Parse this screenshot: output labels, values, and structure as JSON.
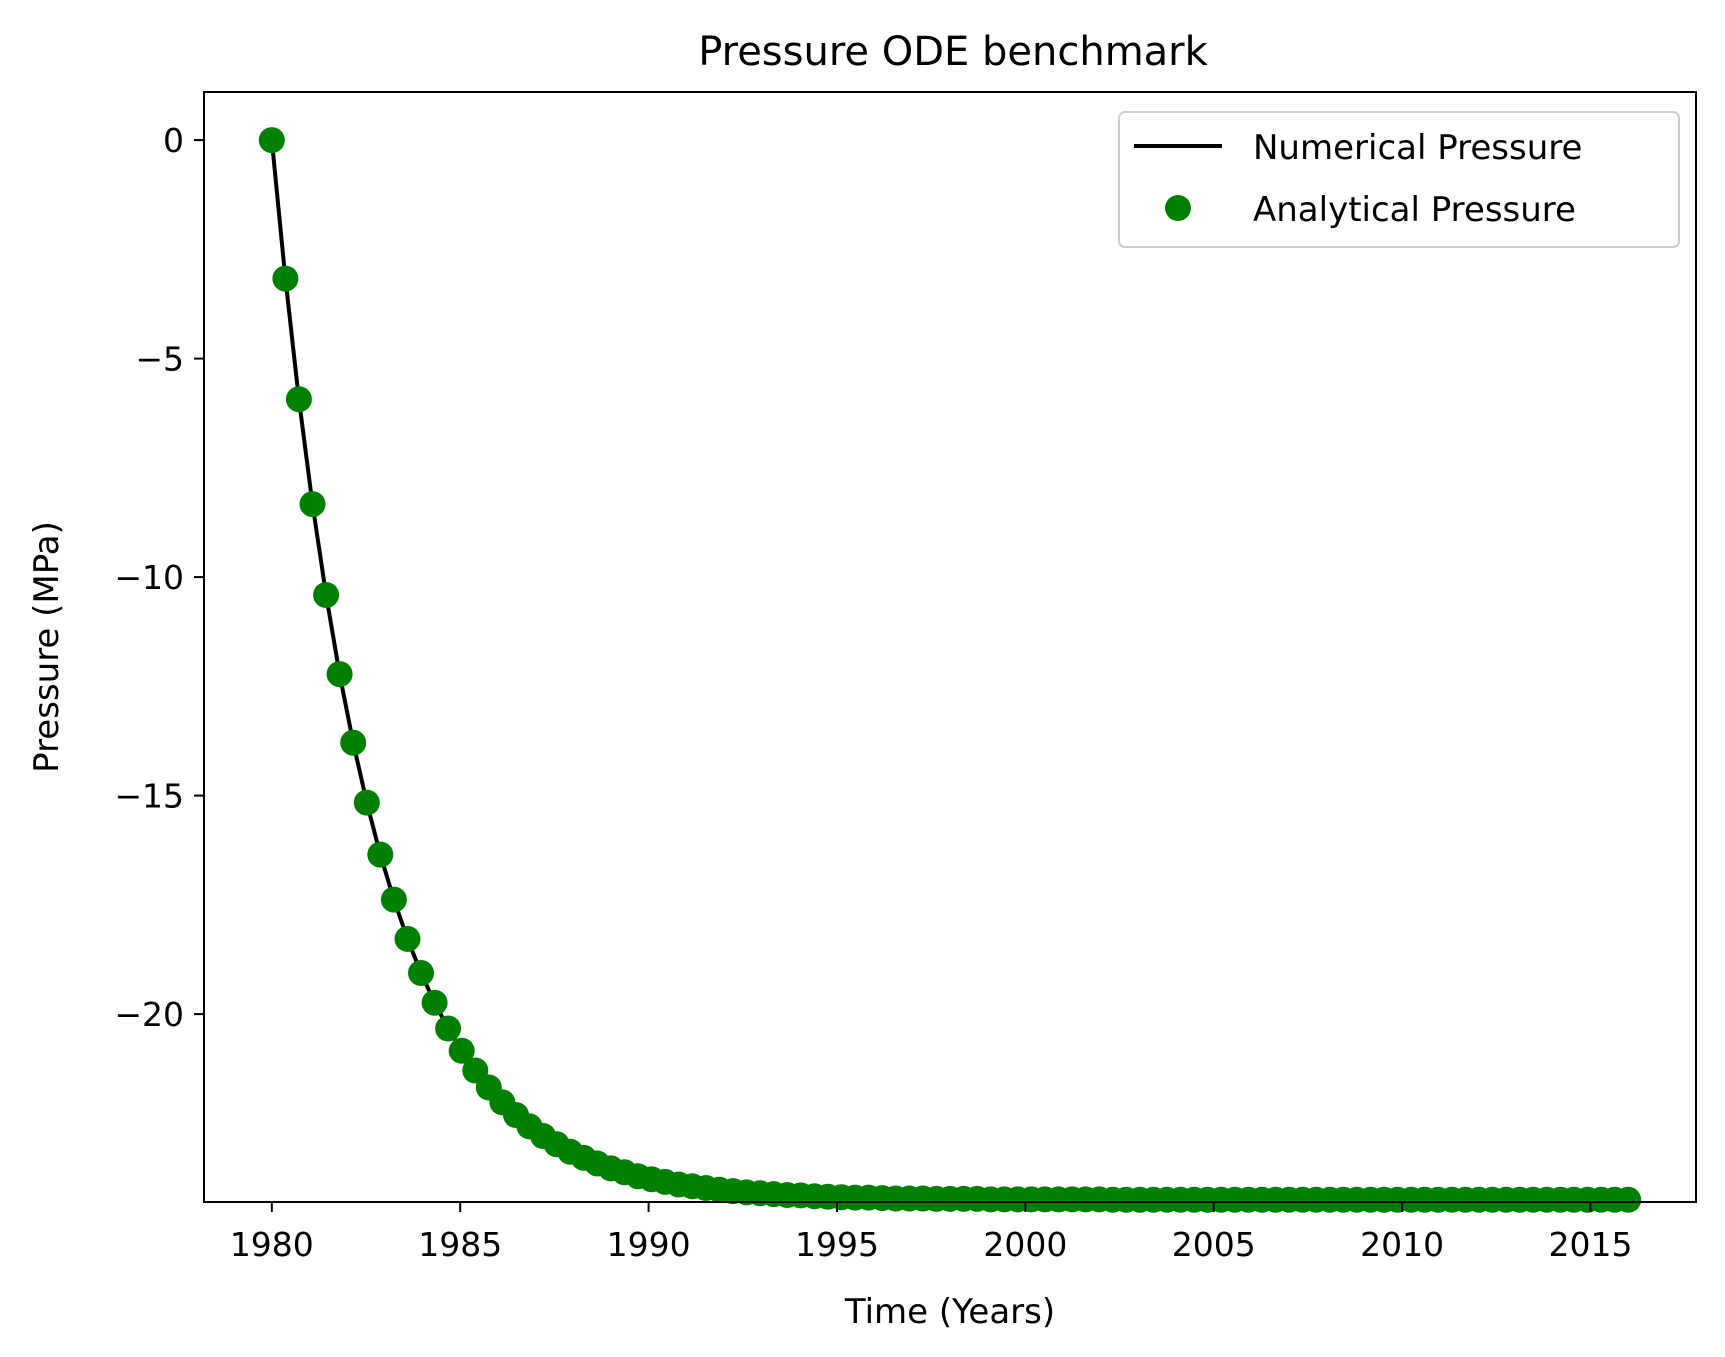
{
  "chart_data": {
    "type": "line",
    "title": "Pressure ODE benchmark",
    "xlabel": "Time (Years)",
    "ylabel": "Pressure (MPa)",
    "xlim": [
      1978.2,
      2017.8
    ],
    "ylim": [
      -24.3,
      1.1
    ],
    "grid": false,
    "legend_position": "top-right",
    "xticks": [
      1980,
      1985,
      1990,
      1995,
      2000,
      2005,
      2010,
      2015
    ],
    "xtick_labels": [
      "1980",
      "1985",
      "1990",
      "1995",
      "2000",
      "2005",
      "2010",
      "2015"
    ],
    "yticks": [
      0,
      -5,
      -10,
      -15,
      -20
    ],
    "ytick_labels": [
      "0",
      "−5",
      "−10",
      "−15",
      "−20"
    ],
    "series": [
      {
        "name": "Numerical Pressure",
        "style": "line",
        "color": "#000000",
        "x": [
          1980.0,
          1980.36,
          1980.72,
          1981.08,
          1981.44,
          1981.8,
          1982.16,
          1982.52,
          1982.88,
          1983.24,
          1983.6,
          1983.96,
          1984.32,
          1984.68,
          1985.04,
          1985.4,
          1985.76,
          1986.12,
          1986.48,
          1986.84,
          1987.2,
          1987.56,
          1987.92,
          1988.28,
          1988.64,
          1989.0,
          1989.36,
          1989.72,
          1990.08,
          1990.44,
          1990.8,
          1991.16,
          1991.52,
          1991.88,
          1992.24,
          1992.6,
          1992.96,
          1993.32,
          1993.68,
          1994.04,
          1994.4,
          1994.76,
          1995.12,
          1995.48,
          1995.84,
          1996.2,
          1996.56,
          1996.92,
          1997.28,
          1997.64,
          1998.0,
          1998.36,
          1998.72,
          1999.08,
          1999.44,
          1999.8,
          2000.16,
          2000.52,
          2000.88,
          2001.24,
          2001.6,
          2001.96,
          2002.32,
          2002.68,
          2003.04,
          2003.4,
          2003.76,
          2004.12,
          2004.48,
          2004.84,
          2005.2,
          2005.56,
          2005.92,
          2006.28,
          2006.64,
          2007.0,
          2007.36,
          2007.72,
          2008.08,
          2008.44,
          2008.8,
          2009.16,
          2009.52,
          2009.88,
          2010.24,
          2010.6,
          2010.96,
          2011.32,
          2011.68,
          2012.04,
          2012.4,
          2012.76,
          2013.12,
          2013.48,
          2013.84,
          2014.2,
          2014.56,
          2014.92,
          2015.28,
          2015.64,
          2016.0
        ],
        "y": [
          0.0,
          -3.17,
          -5.93,
          -8.33,
          -10.41,
          -12.22,
          -13.79,
          -15.16,
          -16.35,
          -17.38,
          -18.28,
          -19.06,
          -19.74,
          -20.33,
          -20.84,
          -21.29,
          -21.68,
          -22.02,
          -22.31,
          -22.57,
          -22.79,
          -22.98,
          -23.15,
          -23.29,
          -23.42,
          -23.53,
          -23.62,
          -23.71,
          -23.78,
          -23.84,
          -23.9,
          -23.94,
          -23.98,
          -24.02,
          -24.05,
          -24.08,
          -24.1,
          -24.12,
          -24.14,
          -24.15,
          -24.17,
          -24.18,
          -24.19,
          -24.2,
          -24.2,
          -24.21,
          -24.22,
          -24.22,
          -24.22,
          -24.23,
          -24.23,
          -24.23,
          -24.23,
          -24.24,
          -24.24,
          -24.24,
          -24.24,
          -24.24,
          -24.24,
          -24.24,
          -24.24,
          -24.24,
          -24.25,
          -24.25,
          -24.25,
          -24.25,
          -24.25,
          -24.25,
          -24.25,
          -24.25,
          -24.25,
          -24.25,
          -24.25,
          -24.25,
          -24.25,
          -24.25,
          -24.25,
          -24.25,
          -24.25,
          -24.25,
          -24.25,
          -24.25,
          -24.25,
          -24.25,
          -24.25,
          -24.25,
          -24.25,
          -24.25,
          -24.25,
          -24.25,
          -24.25,
          -24.25,
          -24.25,
          -24.25,
          -24.25,
          -24.25,
          -24.25,
          -24.25,
          -24.25,
          -24.25,
          -24.25
        ]
      },
      {
        "name": "Analytical Pressure",
        "style": "markers",
        "color": "#008000",
        "x": [
          1980.0,
          1980.36,
          1980.72,
          1981.08,
          1981.44,
          1981.8,
          1982.16,
          1982.52,
          1982.88,
          1983.24,
          1983.6,
          1983.96,
          1984.32,
          1984.68,
          1985.04,
          1985.4,
          1985.76,
          1986.12,
          1986.48,
          1986.84,
          1987.2,
          1987.56,
          1987.92,
          1988.28,
          1988.64,
          1989.0,
          1989.36,
          1989.72,
          1990.08,
          1990.44,
          1990.8,
          1991.16,
          1991.52,
          1991.88,
          1992.24,
          1992.6,
          1992.96,
          1993.32,
          1993.68,
          1994.04,
          1994.4,
          1994.76,
          1995.12,
          1995.48,
          1995.84,
          1996.2,
          1996.56,
          1996.92,
          1997.28,
          1997.64,
          1998.0,
          1998.36,
          1998.72,
          1999.08,
          1999.44,
          1999.8,
          2000.16,
          2000.52,
          2000.88,
          2001.24,
          2001.6,
          2001.96,
          2002.32,
          2002.68,
          2003.04,
          2003.4,
          2003.76,
          2004.12,
          2004.48,
          2004.84,
          2005.2,
          2005.56,
          2005.92,
          2006.28,
          2006.64,
          2007.0,
          2007.36,
          2007.72,
          2008.08,
          2008.44,
          2008.8,
          2009.16,
          2009.52,
          2009.88,
          2010.24,
          2010.6,
          2010.96,
          2011.32,
          2011.68,
          2012.04,
          2012.4,
          2012.76,
          2013.12,
          2013.48,
          2013.84,
          2014.2,
          2014.56,
          2014.92,
          2015.28,
          2015.64,
          2016.0
        ],
        "y": [
          0.0,
          -3.17,
          -5.93,
          -8.33,
          -10.41,
          -12.22,
          -13.79,
          -15.16,
          -16.35,
          -17.38,
          -18.28,
          -19.06,
          -19.74,
          -20.33,
          -20.84,
          -21.29,
          -21.68,
          -22.02,
          -22.31,
          -22.57,
          -22.79,
          -22.98,
          -23.15,
          -23.29,
          -23.42,
          -23.53,
          -23.62,
          -23.71,
          -23.78,
          -23.84,
          -23.9,
          -23.94,
          -23.98,
          -24.02,
          -24.05,
          -24.08,
          -24.1,
          -24.12,
          -24.14,
          -24.15,
          -24.17,
          -24.18,
          -24.19,
          -24.2,
          -24.2,
          -24.21,
          -24.22,
          -24.22,
          -24.22,
          -24.23,
          -24.23,
          -24.23,
          -24.23,
          -24.24,
          -24.24,
          -24.24,
          -24.24,
          -24.24,
          -24.24,
          -24.24,
          -24.24,
          -24.24,
          -24.25,
          -24.25,
          -24.25,
          -24.25,
          -24.25,
          -24.25,
          -24.25,
          -24.25,
          -24.25,
          -24.25,
          -24.25,
          -24.25,
          -24.25,
          -24.25,
          -24.25,
          -24.25,
          -24.25,
          -24.25,
          -24.25,
          -24.25,
          -24.25,
          -24.25,
          -24.25,
          -24.25,
          -24.25,
          -24.25,
          -24.25,
          -24.25,
          -24.25,
          -24.25,
          -24.25,
          -24.25,
          -24.25,
          -24.25,
          -24.25,
          -24.25,
          -24.25,
          -24.25,
          -24.25
        ]
      }
    ]
  }
}
